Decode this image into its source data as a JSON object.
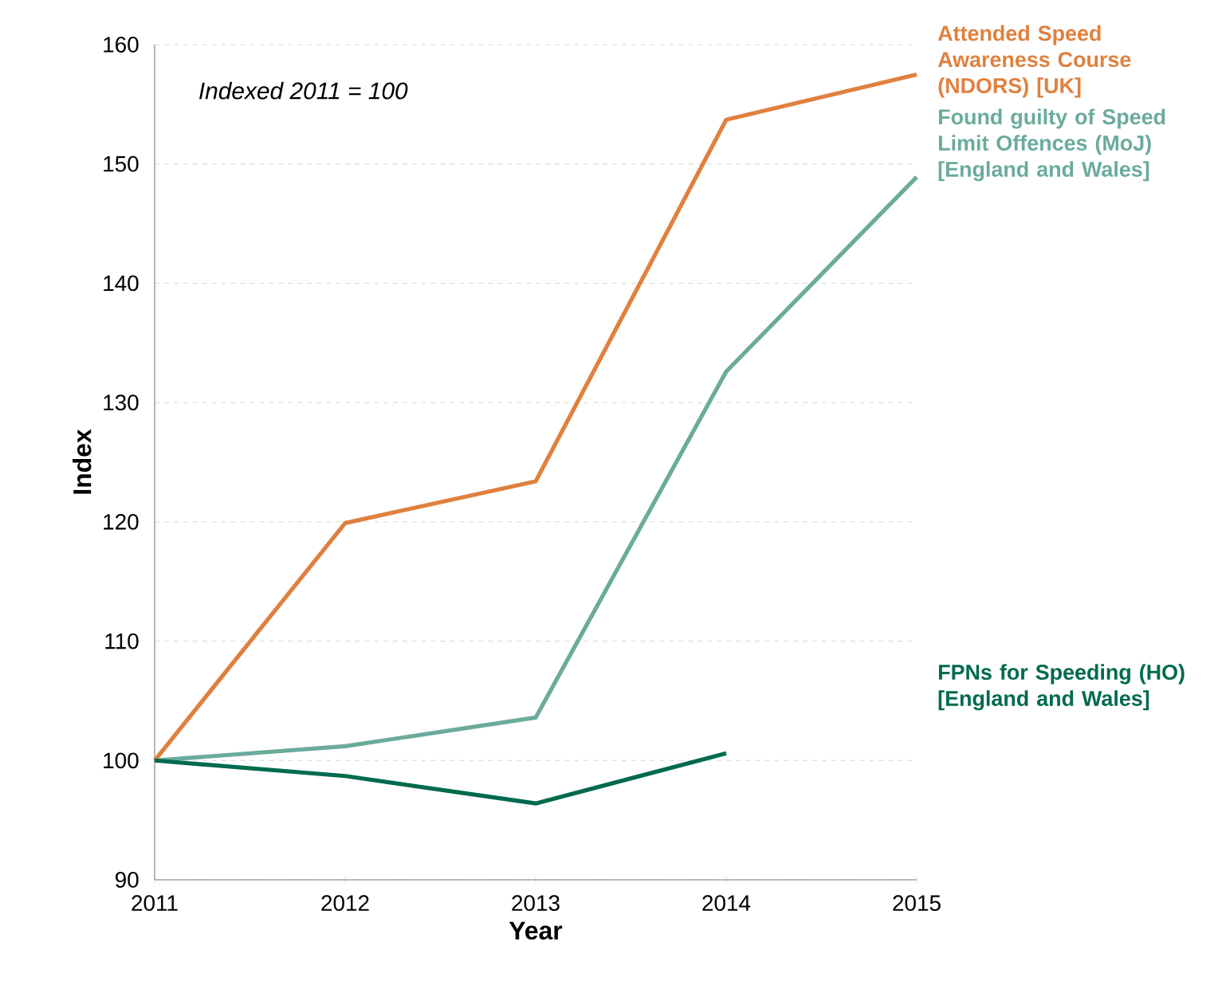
{
  "chart_data": {
    "type": "line",
    "xlabel": "Year",
    "ylabel": "Index",
    "x": [
      2011,
      2012,
      2013,
      2014,
      2015
    ],
    "series": [
      {
        "name": "Attended Speed Awareness Course (NDORS)  [UK]",
        "color": "#e0803e",
        "values": [
          100,
          119.9,
          123.4,
          153.7,
          157.5
        ]
      },
      {
        "name": "Found guilty of Speed Limit Offences (MoJ) [England and Wales]",
        "color": "#6aab9c",
        "values": [
          100,
          101.2,
          103.6,
          132.6,
          148.9
        ]
      },
      {
        "name": "FPNs for Speeding (HO) [England and Wales]",
        "color": "#006a4e",
        "values": [
          100,
          98.7,
          96.4,
          100.6,
          null
        ]
      }
    ],
    "xlim": [
      2011,
      2015
    ],
    "ylim": [
      90,
      160
    ],
    "xticks": [
      2011,
      2012,
      2013,
      2014,
      2015
    ],
    "yticks": [
      90,
      100,
      110,
      120,
      130,
      140,
      150,
      160
    ],
    "grid": "y",
    "line_style": "solid",
    "marker": "none",
    "annotations": [
      "Indexed 2011 = 100"
    ]
  }
}
